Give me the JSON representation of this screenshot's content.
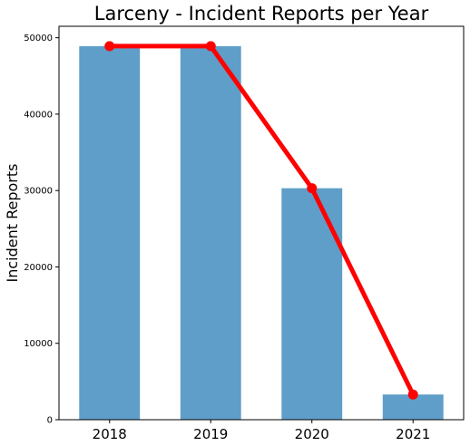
{
  "chart_data": {
    "type": "bar",
    "title": "Larceny - Incident Reports per Year",
    "xlabel": "",
    "ylabel": "Incident Reports",
    "categories": [
      "2018",
      "2019",
      "2020",
      "2021"
    ],
    "values": [
      48900,
      48900,
      30300,
      3300
    ],
    "ylim": [
      0,
      51500
    ],
    "yticks": [
      0,
      10000,
      20000,
      30000,
      40000,
      50000
    ],
    "grid": false,
    "legend": "none",
    "overlay_line": {
      "values": [
        48900,
        48900,
        30300,
        3300
      ],
      "color": "#ff0000",
      "marker": "circle"
    },
    "colors": {
      "bar": "#5f9ec9",
      "line": "#ff0000",
      "axis": "#000000"
    }
  }
}
